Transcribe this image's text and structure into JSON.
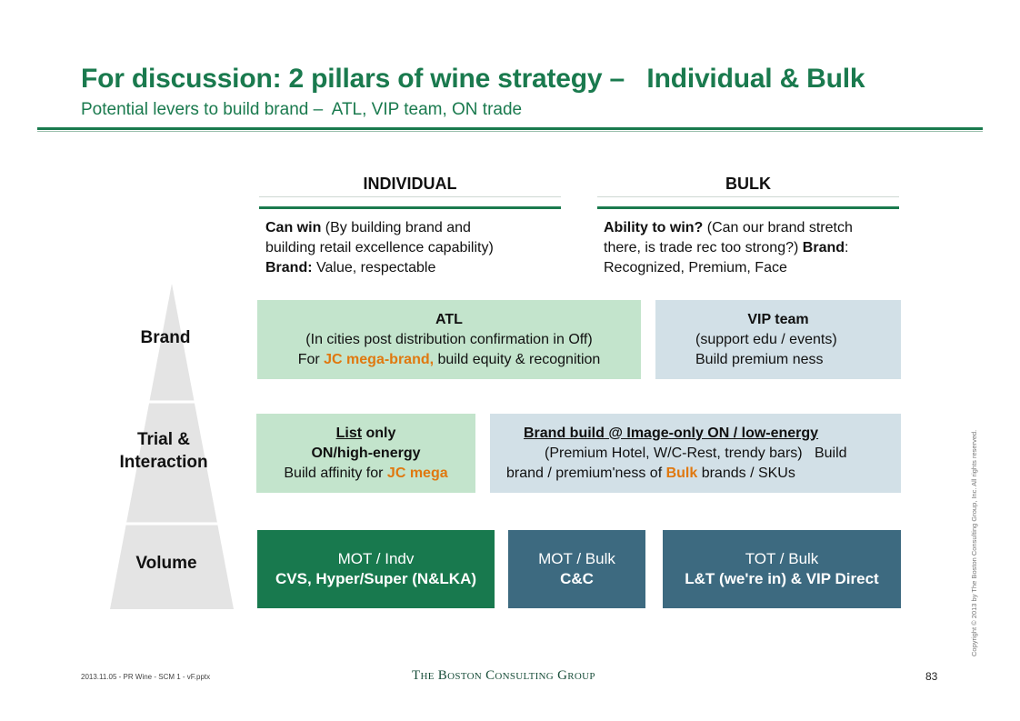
{
  "title": "For discussion: 2 pillars of wine strategy –   Individual & Bulk",
  "subtitle": "Potential levers to build brand –  ATL, VIP team, ON trade",
  "columns": {
    "individual": {
      "header": "INDIVIDUAL",
      "desc_line1_bold": "Can win",
      "desc_line1_rest": " (By building brand and",
      "desc_line2": "building retail excellence capability)",
      "desc_line3_bold": "Brand:",
      "desc_line3_rest": " Value, respectable"
    },
    "bulk": {
      "header": "BULK",
      "desc_line1_bold": "Ability to win?",
      "desc_line1_rest": " (Can our brand stretch",
      "desc_line2_a": "there, is trade rec too strong?) ",
      "desc_line2_bold": "Brand",
      "desc_line2_b": ":",
      "desc_line3": "Recognized, Premium, Face"
    }
  },
  "pyramid": {
    "levels": [
      "Brand",
      "Trial &\nInteraction",
      "Volume"
    ]
  },
  "boxes": {
    "atl": {
      "title": "ATL",
      "line1": "(In cities post distribution confirmation in Off)",
      "line2_a": "For ",
      "line2_hl": "JC mega-brand,",
      "line2_b": " build equity & recognition"
    },
    "vip": {
      "title": "VIP team",
      "line1": "(support edu / events)",
      "line2": "Build premium ness"
    },
    "list_only": {
      "title_u": "List",
      "title_rest": " only",
      "line1": "ON/high-energy",
      "line2_a": "Build affinity for ",
      "line2_hl": "JC mega"
    },
    "brand_build": {
      "title": "Brand build @ Image-only ON / low-energy",
      "line1": "(Premium Hotel, W/C-Rest, trendy bars)   Build",
      "line2_a": "brand / premium'ness of ",
      "line2_hl": "Bulk",
      "line2_b": " brands / SKUs"
    },
    "mot_indv": {
      "line1": "MOT / Indv",
      "line2": "CVS, Hyper/Super (N&LKA)"
    },
    "mot_bulk": {
      "line1": "MOT / Bulk",
      "line2": "C&C"
    },
    "tot_bulk": {
      "line1": "TOT / Bulk",
      "line2": "L&T (we're in) & VIP Direct"
    }
  },
  "footer": {
    "file": "2013.11.05 - PR Wine - SCM 1 - vF.pptx",
    "logo": "The Boston Consulting Group",
    "page": "83",
    "copyright": "Copyright © 2013 by The Boston Consulting Group, Inc. All rights reserved."
  },
  "colors": {
    "brand_green": "#1a7a4e",
    "light_green": "#c3e4cc",
    "light_blue": "#d2e0e7",
    "dark_green": "#18794e",
    "dark_blue": "#3d6a80",
    "highlight_orange": "#e0780f",
    "pyramid_gray": "#e4e4e4"
  }
}
